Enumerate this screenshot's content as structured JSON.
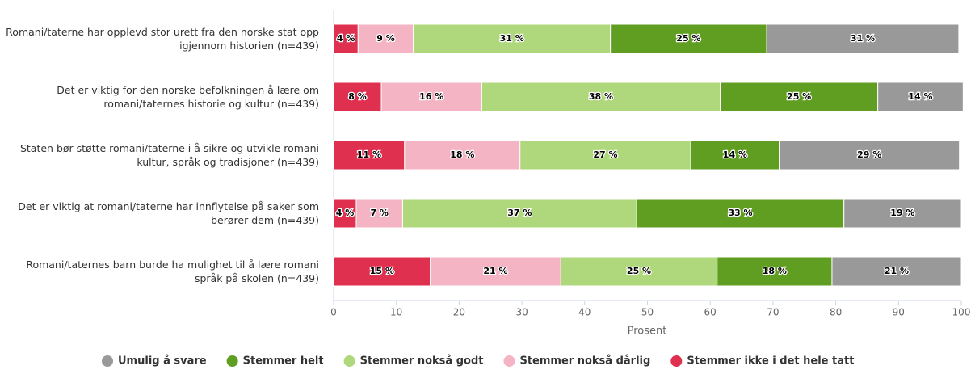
{
  "chart_data": {
    "type": "stacked_bar_horizontal",
    "categories": [
      "Romani/taterne har opplevd stor urett fra den norske stat opp igjennom historien (n=439)",
      "Det er viktig for den norske befolkningen å lære om romani/taternes historie og kultur (n=439)",
      "Staten bør støtte romani/taterne i å sikre og utvikle romani kultur, språk og tradisjoner (n=439)",
      "Det er viktig at romani/taterne har innflytelse på saker som berører dem (n=439)",
      "Romani/taternes barn burde ha mulighet til å lære romani språk på skolen (n=439)"
    ],
    "series": [
      {
        "name": "Umulig å svare",
        "color": "#999999",
        "values": [
          30.6,
          13.6,
          28.7,
          18.7,
          20.6
        ],
        "value_labels": [
          "31 %",
          "14 %",
          "29 %",
          "19 %",
          "21 %"
        ]
      },
      {
        "name": "Stemmer helt",
        "color": "#5f9e20",
        "values": [
          24.9,
          25.1,
          14.1,
          33.0,
          18.3
        ],
        "value_labels": [
          "25 %",
          "25 %",
          "14 %",
          "33 %",
          "18 %"
        ]
      },
      {
        "name": "Stemmer nokså godt",
        "color": "#aed87b",
        "values": [
          31.4,
          38.0,
          27.2,
          37.3,
          24.9
        ],
        "value_labels": [
          "31 %",
          "38 %",
          "27 %",
          "37 %",
          "25 %"
        ]
      },
      {
        "name": "Stemmer nokså dårlig",
        "color": "#f4b4c3",
        "values": [
          8.8,
          16.0,
          18.4,
          7.4,
          20.8
        ],
        "value_labels": [
          "9 %",
          "16 %",
          "18 %",
          "7 %",
          "21 %"
        ]
      },
      {
        "name": "Stemmer ikke i det hele tatt",
        "color": "#e0304f",
        "values": [
          3.9,
          7.6,
          11.3,
          3.6,
          15.4
        ],
        "value_labels": [
          "4 %",
          "8 %",
          "11 %",
          "4 %",
          "15 %"
        ]
      }
    ],
    "x_label": "Prosent",
    "xlim": [
      0,
      100
    ],
    "xticks": [
      0,
      10,
      20,
      30,
      40,
      50,
      60,
      70,
      80,
      90,
      100
    ],
    "legend": "bottom"
  }
}
